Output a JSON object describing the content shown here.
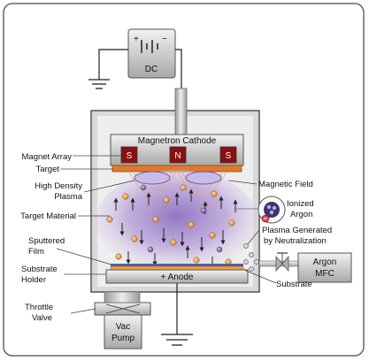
{
  "power_supply": {
    "plus": "+",
    "minus": "−",
    "label": "DC"
  },
  "cathode": {
    "title": "Magnetron Cathode",
    "magnets": [
      "S",
      "N",
      "S"
    ]
  },
  "anode": {
    "label": "+ Anode"
  },
  "argon_mfc": {
    "line1": "Argon",
    "line2": "MFC"
  },
  "vac_pump": {
    "line1": "Vac",
    "line2": "Pump"
  },
  "labels": {
    "magnet_array": "Magnet Array",
    "target": "Target",
    "high_density_plasma_1": "High Density",
    "high_density_plasma_2": "Plasma",
    "target_material": "Target Material",
    "sputtered_film_1": "Sputtered",
    "sputtered_film_2": "Film",
    "substrate_holder_1": "Substrate",
    "substrate_holder_2": "Holder",
    "throttle_valve_1": "Throttle",
    "throttle_valve_2": "Valve",
    "magnetic_field": "Magnetic Field",
    "ionized_argon_1": "Ionized",
    "ionized_argon_2": "Argon",
    "plasma_generated_1": "Plasma Generated",
    "plasma_generated_2": "by Neutralization",
    "substrate": "Substrate"
  },
  "colors": {
    "chamber_fill": "#d9d9d9",
    "chamber_stroke": "#555555",
    "target": "#e0782c",
    "plasma": "#a28ac8",
    "atom": "#f0a040",
    "argon_atom": "#7d70b0",
    "film": "#4a5fb0",
    "box": "#d0d0d0"
  }
}
